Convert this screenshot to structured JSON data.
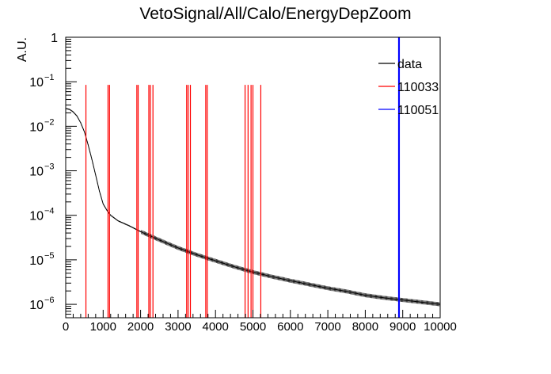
{
  "chart_data": {
    "type": "line",
    "title": "VetoSignal/All/Calo/EnergyDepZoom",
    "xlabel": "",
    "ylabel": "A.U.",
    "xlim": [
      0,
      10000
    ],
    "ylim": [
      5e-07,
      1
    ],
    "yscale": "log",
    "grid": false,
    "legend_position": "top-right",
    "x_ticks": [
      0,
      1000,
      2000,
      3000,
      4000,
      5000,
      6000,
      7000,
      8000,
      9000,
      10000
    ],
    "x_tick_labels": [
      "0",
      "1000",
      "2000",
      "3000",
      "4000",
      "5000",
      "6000",
      "7000",
      "8000",
      "9000",
      "10000"
    ],
    "y_ticks": [
      1e-06,
      1e-05,
      0.0001,
      0.001,
      0.01,
      0.1,
      1
    ],
    "y_tick_labels": [
      {
        "base": "10",
        "exp": "−6"
      },
      {
        "base": "10",
        "exp": "−5"
      },
      {
        "base": "10",
        "exp": "−4"
      },
      {
        "base": "10",
        "exp": "−3"
      },
      {
        "base": "10",
        "exp": "−2"
      },
      {
        "base": "10",
        "exp": "−1"
      },
      {
        "base": "1",
        "exp": ""
      }
    ],
    "series": [
      {
        "name": "data",
        "color": "#000000",
        "kind": "curve",
        "x": [
          0,
          100,
          200,
          300,
          400,
          500,
          600,
          700,
          800,
          900,
          1000,
          1100,
          1200,
          1400,
          1700,
          2000,
          2500,
          3000,
          3500,
          4000,
          4500,
          5000,
          5500,
          6000,
          6500,
          7000,
          7500,
          8000,
          8500,
          9000,
          9500,
          10000
        ],
        "y": [
          0.025,
          0.024,
          0.021,
          0.017,
          0.012,
          0.0075,
          0.0038,
          0.0018,
          0.0008,
          0.00035,
          0.00018,
          0.00013,
          0.0001,
          7.5e-05,
          5.8e-05,
          4.3e-05,
          2.8e-05,
          1.85e-05,
          1.3e-05,
          9.5e-06,
          7e-06,
          5.3e-06,
          4.2e-06,
          3.4e-06,
          2.8e-06,
          2.3e-06,
          1.95e-06,
          1.6e-06,
          1.4e-06,
          1.25e-06,
          1.12e-06,
          1e-06
        ]
      },
      {
        "name": "110033",
        "color": "#ff0000",
        "kind": "spikes",
        "x": [
          540,
          1130,
          1170,
          1900,
          1935,
          2220,
          2260,
          2330,
          3230,
          3270,
          3330,
          3740,
          3780,
          4790,
          4870,
          4950,
          5000,
          5210
        ],
        "y": [
          0.085,
          0.085,
          0.085,
          0.085,
          0.085,
          0.085,
          0.085,
          0.085,
          0.085,
          0.085,
          0.085,
          0.085,
          0.085,
          0.085,
          0.085,
          0.085,
          0.085,
          0.085
        ]
      },
      {
        "name": "110051",
        "color": "#0000ff",
        "kind": "spikes",
        "x": [
          8890,
          8910
        ],
        "y": [
          1,
          1
        ]
      }
    ]
  }
}
